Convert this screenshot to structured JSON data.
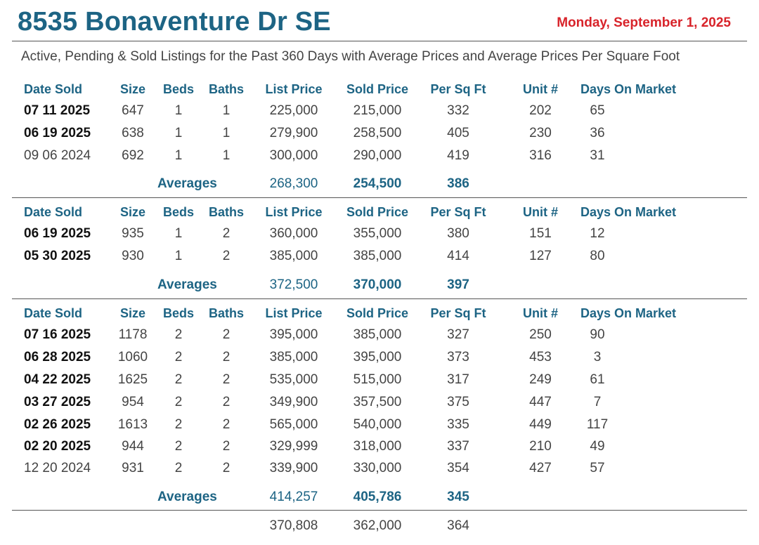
{
  "header": {
    "title": "8535 Bonaventure Dr SE",
    "date": "Monday, September 1, 2025",
    "subtitle": "Active, Pending & Sold Listings for the Past 360 Days with Average Prices and Average Prices Per Square Foot"
  },
  "columns": {
    "date_sold": "Date Sold",
    "size": "Size",
    "beds": "Beds",
    "baths": "Baths",
    "list_price": "List Price",
    "sold_price": "Sold Price",
    "per_sq_ft": "Per Sq Ft",
    "unit": "Unit #",
    "days_on_market": "Days On Market"
  },
  "groups": [
    {
      "rows": [
        {
          "date": "07 11 2025",
          "bold": true,
          "size": "647",
          "beds": "1",
          "baths": "1",
          "list": "225,000",
          "sold": "215,000",
          "psf": "332",
          "unit": "202",
          "dom": "65"
        },
        {
          "date": "06 19 2025",
          "bold": true,
          "size": "638",
          "beds": "1",
          "baths": "1",
          "list": "279,900",
          "sold": "258,500",
          "psf": "405",
          "unit": "230",
          "dom": "36"
        },
        {
          "date": "09 06 2024",
          "bold": false,
          "size": "692",
          "beds": "1",
          "baths": "1",
          "list": "300,000",
          "sold": "290,000",
          "psf": "419",
          "unit": "316",
          "dom": "31"
        }
      ],
      "averages": {
        "label": "Averages",
        "list": "268,300",
        "sold": "254,500",
        "psf": "386"
      }
    },
    {
      "rows": [
        {
          "date": "06 19 2025",
          "bold": true,
          "size": "935",
          "beds": "1",
          "baths": "2",
          "list": "360,000",
          "sold": "355,000",
          "psf": "380",
          "unit": "151",
          "dom": "12"
        },
        {
          "date": "05 30 2025",
          "bold": true,
          "size": "930",
          "beds": "1",
          "baths": "2",
          "list": "385,000",
          "sold": "385,000",
          "psf": "414",
          "unit": "127",
          "dom": "80"
        }
      ],
      "averages": {
        "label": "Averages",
        "list": "372,500",
        "sold": "370,000",
        "psf": "397"
      }
    },
    {
      "rows": [
        {
          "date": "07 16 2025",
          "bold": true,
          "size": "1178",
          "beds": "2",
          "baths": "2",
          "list": "395,000",
          "sold": "385,000",
          "psf": "327",
          "unit": "250",
          "dom": "90"
        },
        {
          "date": "06 28 2025",
          "bold": true,
          "size": "1060",
          "beds": "2",
          "baths": "2",
          "list": "385,000",
          "sold": "395,000",
          "psf": "373",
          "unit": "453",
          "dom": "3"
        },
        {
          "date": "04 22 2025",
          "bold": true,
          "size": "1625",
          "beds": "2",
          "baths": "2",
          "list": "535,000",
          "sold": "515,000",
          "psf": "317",
          "unit": "249",
          "dom": "61"
        },
        {
          "date": "03 27 2025",
          "bold": true,
          "size": "954",
          "beds": "2",
          "baths": "2",
          "list": "349,900",
          "sold": "357,500",
          "psf": "375",
          "unit": "447",
          "dom": "7"
        },
        {
          "date": "02 26 2025",
          "bold": true,
          "size": "1613",
          "beds": "2",
          "baths": "2",
          "list": "565,000",
          "sold": "540,000",
          "psf": "335",
          "unit": "449",
          "dom": "117"
        },
        {
          "date": "02 20 2025",
          "bold": true,
          "size": "944",
          "beds": "2",
          "baths": "2",
          "list": "329,999",
          "sold": "318,000",
          "psf": "337",
          "unit": "210",
          "dom": "49"
        },
        {
          "date": "12 20 2024",
          "bold": false,
          "size": "931",
          "beds": "2",
          "baths": "2",
          "list": "339,900",
          "sold": "330,000",
          "psf": "354",
          "unit": "427",
          "dom": "57"
        }
      ],
      "averages": {
        "label": "Averages",
        "list": "414,257",
        "sold": "405,786",
        "psf": "345"
      }
    }
  ],
  "totals": {
    "list": "370,808",
    "sold": "362,000",
    "psf": "364"
  }
}
